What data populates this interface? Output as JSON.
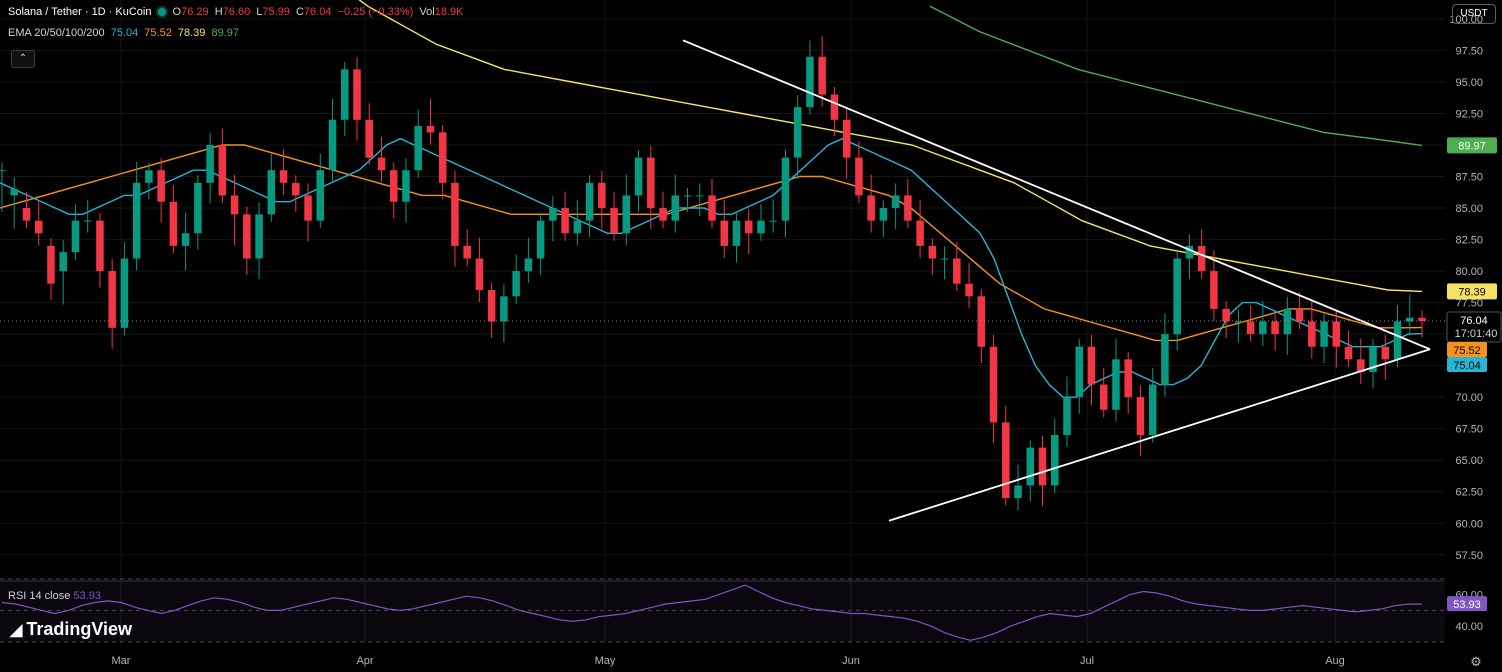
{
  "header": {
    "symbol": "Solana / Tether · 1D · KuCoin",
    "open_label": "O",
    "open": "76.29",
    "high_label": "H",
    "high": "76.60",
    "low_label": "L",
    "low": "75.99",
    "close_label": "C",
    "close": "76.04",
    "change": "−0.25 (−0.33%)",
    "vol_label": "Vol",
    "vol": "18.9K"
  },
  "ema_legend": {
    "label": "EMA 20/50/100/200",
    "ema20": "75.04",
    "ema50": "75.52",
    "ema100": "78.39",
    "ema200": "89.97"
  },
  "currency_button": "USDT",
  "collapse_icon": "chevron-up-icon",
  "settings_icon": "gear-icon",
  "rsi_legend": {
    "label": "RSI 14 close",
    "value": "53.93"
  },
  "logo": {
    "text": "TradingView"
  },
  "price_tags": {
    "ema200": "89.97",
    "ema100": "78.39",
    "last_price": "76.04",
    "countdown": "17:01:40",
    "ema50": "75.52",
    "ema20": "75.04",
    "rsi": "53.93"
  },
  "colors": {
    "up": "#089981",
    "down": "#f23645",
    "ema20": "#26b5d5",
    "ema50": "#f7931a",
    "ema100": "#f5e461",
    "ema200": "#4caf50",
    "rsi": "#7e57c2",
    "trendline": "#ffffff"
  },
  "chart_data": {
    "type": "candlestick",
    "title": "Solana / Tether · 1D · KuCoin",
    "x_ticks": [
      "Mar",
      "Apr",
      "May",
      "Jun",
      "Jul",
      "Aug"
    ],
    "y_ticks": [
      57.5,
      60,
      62.5,
      65,
      67.5,
      70,
      72.5,
      75,
      77.5,
      80,
      82.5,
      85,
      87.5,
      90,
      92.5,
      95,
      97.5,
      100
    ],
    "ylim": [
      55.5,
      101.5
    ],
    "rsi_ticks": [
      40,
      60
    ],
    "rsi_ylim": [
      28,
      68
    ],
    "last_price": 76.04,
    "ohlc_path": [
      [
        88,
        86,
        88
      ],
      [
        86,
        85,
        86.5
      ],
      [
        85,
        84,
        84
      ],
      [
        84,
        84,
        83
      ],
      [
        82,
        80,
        79
      ],
      [
        80,
        79,
        81.5
      ],
      [
        81.5,
        82,
        84
      ],
      [
        84,
        84,
        84
      ],
      [
        84,
        82,
        80
      ],
      [
        80,
        78,
        75.5
      ],
      [
        75.5,
        78,
        81
      ],
      [
        81,
        83,
        87
      ],
      [
        87,
        88,
        88
      ],
      [
        88,
        88,
        85.5
      ],
      [
        85.5,
        84,
        82
      ],
      [
        82,
        81,
        83
      ],
      [
        83,
        84,
        87
      ],
      [
        87,
        89,
        90
      ],
      [
        90,
        89,
        86
      ],
      [
        86,
        83,
        84.5
      ],
      [
        84.5,
        83,
        81
      ],
      [
        81,
        83,
        84.5
      ],
      [
        84.5,
        86,
        88
      ],
      [
        88,
        88,
        87
      ],
      [
        87,
        86,
        86
      ],
      [
        86,
        84,
        84
      ],
      [
        84,
        86,
        88
      ],
      [
        88,
        90,
        92
      ],
      [
        92,
        93,
        96
      ],
      [
        96,
        94,
        92
      ],
      [
        92,
        90,
        89
      ],
      [
        89,
        89,
        88
      ],
      [
        88,
        86,
        85.5
      ],
      [
        85.5,
        86,
        88
      ],
      [
        88,
        90,
        91.5
      ],
      [
        91.5,
        92,
        91
      ],
      [
        91,
        90,
        87
      ],
      [
        87,
        84,
        82
      ],
      [
        82,
        81,
        81
      ],
      [
        81,
        79,
        78.5
      ],
      [
        78.5,
        76,
        76
      ],
      [
        76,
        76,
        78
      ],
      [
        78,
        79,
        80
      ],
      [
        80,
        80,
        81
      ],
      [
        81,
        82,
        84
      ],
      [
        84,
        85,
        85
      ],
      [
        85,
        84,
        83
      ],
      [
        83,
        83,
        84
      ],
      [
        84,
        85,
        87
      ],
      [
        87,
        86,
        85
      ],
      [
        85,
        84,
        83
      ],
      [
        83,
        84,
        86
      ],
      [
        86,
        88,
        89
      ],
      [
        89,
        87,
        85
      ],
      [
        85,
        84,
        84
      ],
      [
        84,
        85,
        86
      ],
      [
        86,
        86,
        86
      ],
      [
        86,
        86,
        86
      ],
      [
        86,
        85,
        84
      ],
      [
        84,
        83,
        82
      ],
      [
        82,
        82,
        84
      ],
      [
        84,
        83,
        83
      ],
      [
        83,
        83,
        84
      ],
      [
        84,
        84,
        84
      ],
      [
        84,
        87,
        89
      ],
      [
        89,
        91,
        93
      ],
      [
        93,
        95,
        97
      ],
      [
        97,
        96,
        94
      ],
      [
        94,
        93,
        92
      ],
      [
        92,
        91,
        89
      ],
      [
        89,
        88,
        86
      ],
      [
        86,
        85,
        84
      ],
      [
        84,
        84,
        85
      ],
      [
        85,
        86,
        86
      ],
      [
        86,
        85,
        84
      ],
      [
        84,
        83,
        82
      ],
      [
        82,
        81,
        81
      ],
      [
        81,
        81,
        81
      ],
      [
        81,
        80,
        79
      ],
      [
        79,
        79,
        78
      ],
      [
        78,
        76,
        74
      ],
      [
        74,
        70,
        68
      ],
      [
        68,
        65,
        62
      ],
      [
        62,
        62,
        63
      ],
      [
        63,
        65,
        66
      ],
      [
        66,
        64,
        63
      ],
      [
        63,
        65,
        67
      ],
      [
        67,
        69,
        70
      ],
      [
        70,
        72,
        74
      ],
      [
        74,
        73,
        71
      ],
      [
        71,
        70,
        69
      ],
      [
        69,
        71,
        73
      ],
      [
        73,
        72,
        70
      ],
      [
        70,
        68,
        67
      ],
      [
        67,
        68,
        71
      ],
      [
        71,
        73,
        75
      ],
      [
        75,
        78,
        81
      ],
      [
        81,
        82,
        82
      ],
      [
        82,
        81,
        80
      ],
      [
        80,
        78,
        77
      ],
      [
        77,
        77,
        76
      ],
      [
        76,
        76,
        76
      ],
      [
        76,
        75,
        75
      ],
      [
        75,
        75,
        76
      ],
      [
        76,
        76,
        75
      ],
      [
        75,
        76,
        77
      ],
      [
        77,
        77,
        76
      ],
      [
        76,
        75,
        74
      ],
      [
        74,
        75,
        76
      ],
      [
        76,
        75,
        74
      ],
      [
        74,
        73,
        73
      ],
      [
        73,
        72,
        72
      ],
      [
        72,
        72,
        74
      ],
      [
        74,
        74,
        73
      ],
      [
        73,
        74,
        76
      ],
      [
        76,
        76.5,
        76.3
      ],
      [
        76.3,
        76.1,
        76.04
      ]
    ],
    "ema20": [
      87,
      86.5,
      86,
      85.5,
      85,
      84.5,
      84.5,
      85,
      85.5,
      86,
      86,
      86.5,
      87,
      87.5,
      88,
      88,
      87.5,
      87,
      86.5,
      86,
      85.5,
      85.5,
      86,
      86.5,
      87,
      87.5,
      88,
      89,
      90,
      90.5,
      90,
      89.5,
      89,
      88.5,
      88,
      87.5,
      87,
      86.5,
      86,
      85.5,
      85,
      84.5,
      84,
      83.5,
      83,
      83,
      83.5,
      84,
      84.5,
      85,
      85,
      85,
      84.5,
      84.5,
      85,
      85.5,
      86,
      87,
      88,
      89,
      90,
      90.5,
      90,
      89.5,
      89,
      88.5,
      88,
      87,
      86,
      85,
      84,
      83,
      81,
      78,
      75,
      72.5,
      71,
      70,
      70,
      71,
      71.5,
      72,
      72,
      71.5,
      71,
      71,
      71.5,
      72.5,
      74.5,
      76.5,
      77.5,
      77.5,
      77,
      76.5,
      76,
      75.5,
      75,
      74.5,
      74,
      74,
      74,
      74.5,
      75,
      75.04
    ],
    "ema50": [
      85,
      85.5,
      86,
      86.5,
      87,
      87.5,
      88,
      88.5,
      89,
      89.5,
      90,
      90,
      89.5,
      89,
      88.5,
      88,
      87.5,
      87,
      86.5,
      86,
      86,
      85.5,
      85,
      84.5,
      84.5,
      84.5,
      84.5,
      84.5,
      84.5,
      84.5,
      84.5,
      85,
      85.5,
      86,
      86.5,
      87,
      87.5,
      87.5,
      87,
      86.5,
      86,
      85,
      83.5,
      82,
      80.5,
      79,
      78,
      77,
      76.5,
      76,
      75.5,
      75,
      74.5,
      74.5,
      75,
      75.5,
      76,
      76.5,
      77,
      77,
      76.5,
      76,
      75.5,
      75.5,
      75.52
    ],
    "ema100": [
      105,
      103,
      101,
      99.5,
      98,
      97,
      96,
      95.5,
      95,
      94.5,
      94,
      93.5,
      93,
      92.5,
      92,
      91.5,
      91,
      90.5,
      90,
      89,
      88,
      87,
      85.5,
      84,
      83,
      82,
      81.5,
      81,
      80.5,
      80,
      79.5,
      79,
      78.5,
      78.39
    ],
    "ema200": [
      101,
      99,
      97.5,
      96,
      95,
      94,
      93,
      92,
      91,
      90.5,
      89.97
    ],
    "upper_trendline": {
      "from": {
        "month": "May",
        "price": 98.3
      },
      "to": {
        "month": "Aug",
        "price": 73.8
      }
    },
    "lower_trendline": {
      "from": {
        "month": "Jun",
        "price": 60.2
      },
      "to": {
        "month": "Aug",
        "price": 73.8
      }
    },
    "rsi": [
      55,
      54,
      52,
      50,
      48,
      50,
      53,
      55,
      56,
      55,
      52,
      50,
      48,
      50,
      53,
      56,
      58,
      57,
      55,
      52,
      50,
      50,
      52,
      54,
      56,
      58,
      57,
      55,
      53,
      51,
      50,
      51,
      53,
      55,
      57,
      59,
      58,
      56,
      53,
      50,
      48,
      46,
      44,
      43,
      44,
      46,
      47,
      48,
      50,
      52,
      54,
      55,
      56,
      57,
      60,
      63,
      66,
      62,
      58,
      55,
      53,
      51,
      50,
      49,
      48,
      48,
      47,
      46,
      45,
      43,
      40,
      36,
      33,
      31,
      33,
      36,
      40,
      43,
      46,
      48,
      47,
      46,
      48,
      52,
      56,
      60,
      62,
      61,
      59,
      56,
      54,
      53,
      52,
      51,
      50,
      50,
      51,
      52,
      53,
      52,
      51,
      50,
      49,
      50,
      51,
      53,
      54,
      53.93
    ]
  }
}
